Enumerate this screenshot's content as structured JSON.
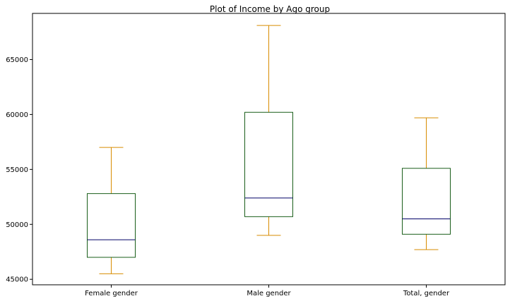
{
  "chart_data": {
    "type": "boxplot",
    "title": "Plot of Income by Ago group",
    "xlabel": "",
    "ylabel": "",
    "categories": [
      "Female gender",
      "Male gender",
      "Total, gender"
    ],
    "boxes": [
      {
        "category": "Female gender",
        "whisker_low": 45500,
        "q1": 47000,
        "median": 48600,
        "q3": 52800,
        "whisker_high": 57000
      },
      {
        "category": "Male gender",
        "whisker_low": 49000,
        "q1": 50700,
        "median": 52400,
        "q3": 60200,
        "whisker_high": 68100
      },
      {
        "category": "Total, gender",
        "whisker_low": 47700,
        "q1": 49100,
        "median": 50500,
        "q3": 55100,
        "whisker_high": 59700
      }
    ],
    "ylim": [
      44500,
      69200
    ],
    "yticks": [
      45000,
      50000,
      55000,
      60000,
      65000
    ],
    "grid": false,
    "colors": {
      "box": "#1a5e1a",
      "whisker": "#d88c00",
      "median": "#000066",
      "axis": "#000000"
    }
  }
}
